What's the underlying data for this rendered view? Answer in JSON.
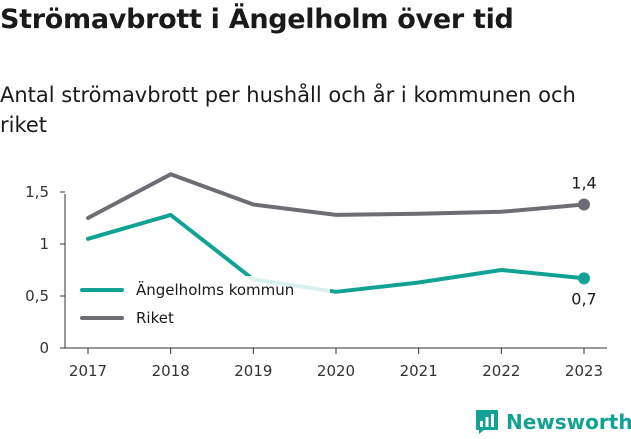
{
  "title": "Strömavbrott i Ängelholm över tid",
  "subtitle": "Antal strömavbrott per hushåll och år i kommunen och riket",
  "chart_data": {
    "type": "line",
    "x": [
      "2017",
      "2018",
      "2019",
      "2020",
      "2021",
      "2022",
      "2023"
    ],
    "ylim": [
      0,
      1.75
    ],
    "yticks": [
      "0",
      "0,5",
      "1",
      "1,5"
    ],
    "grid": false,
    "legend_position": "bottom-left",
    "series": [
      {
        "name": "Ängelholms kommun",
        "color": "#12a294",
        "values": [
          1.05,
          1.28,
          0.66,
          0.54,
          0.63,
          0.75,
          0.67
        ],
        "end_label": "0,7"
      },
      {
        "name": "Riket",
        "color": "#6d6d75",
        "values": [
          1.25,
          1.67,
          1.38,
          1.28,
          1.29,
          1.31,
          1.38
        ],
        "end_label": "1,4"
      }
    ]
  },
  "brand": {
    "name": "Newsworthy",
    "color": "#12a294",
    "icon": "bar-chart-icon"
  }
}
